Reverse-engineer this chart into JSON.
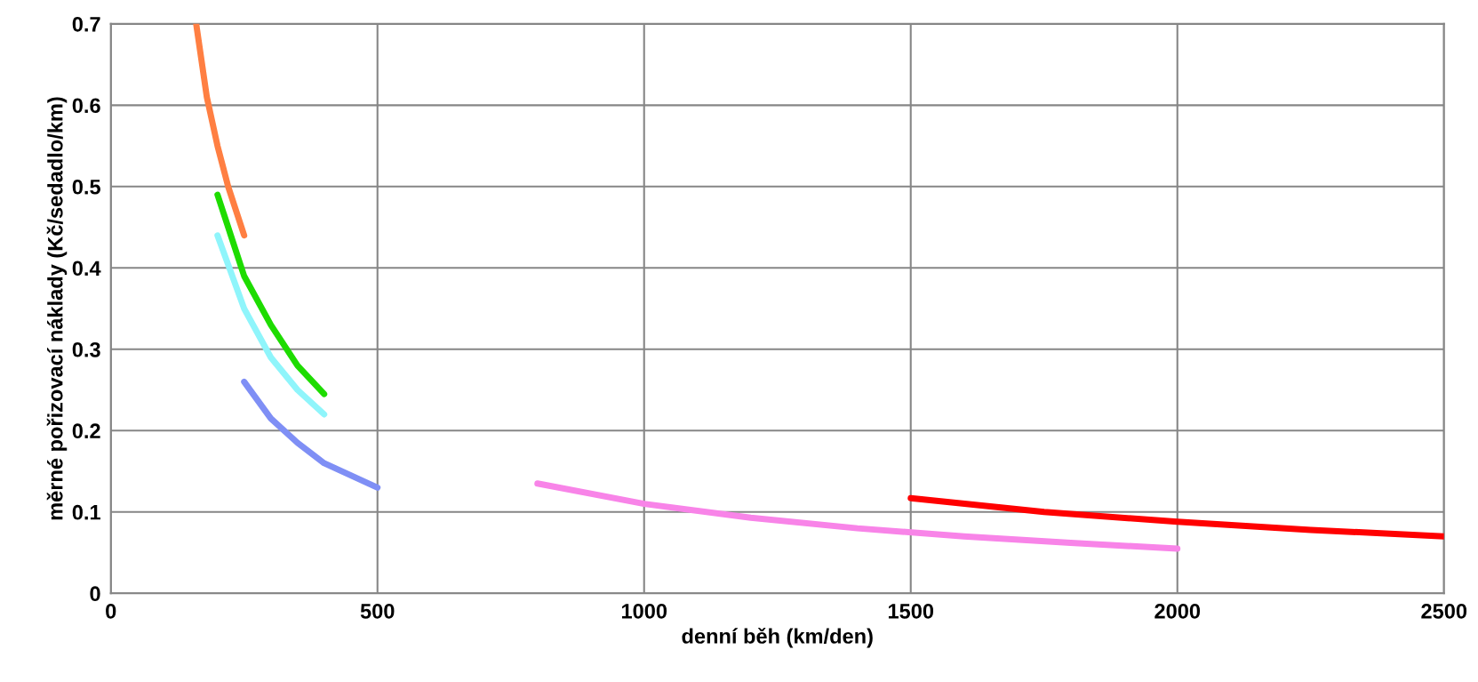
{
  "chart_data": {
    "type": "line",
    "xlabel": "denní běh (km/den)",
    "ylabel": "měrné pořizovací náklady (Kč/sedadlo/km)",
    "xlim": [
      0,
      2500
    ],
    "xticks": [
      0,
      500,
      1000,
      1500,
      2000,
      2500
    ],
    "ylim": [
      0,
      0.7
    ],
    "yticks": [
      0,
      0.1,
      0.2,
      0.3,
      0.4,
      0.5,
      0.6,
      0.7
    ],
    "grid": true,
    "marker": "none",
    "line_style": "solid",
    "series": [
      {
        "color": "#ff7f42",
        "x": [
          160,
          180,
          200,
          220,
          250
        ],
        "values": [
          0.7,
          0.61,
          0.55,
          0.5,
          0.44
        ]
      },
      {
        "color": "#1edc00",
        "x": [
          200,
          250,
          300,
          350,
          400
        ],
        "values": [
          0.49,
          0.39,
          0.33,
          0.28,
          0.245
        ]
      },
      {
        "color": "#8ff5fb",
        "x": [
          200,
          250,
          300,
          350,
          400
        ],
        "values": [
          0.44,
          0.35,
          0.29,
          0.25,
          0.22
        ]
      },
      {
        "color": "#7f8ff5",
        "x": [
          250,
          300,
          350,
          400,
          450,
          500
        ],
        "values": [
          0.26,
          0.215,
          0.185,
          0.16,
          0.145,
          0.13
        ]
      },
      {
        "color": "#f884e8",
        "x": [
          800,
          1000,
          1200,
          1400,
          1600,
          1800,
          2000
        ],
        "values": [
          0.135,
          0.11,
          0.093,
          0.08,
          0.07,
          0.062,
          0.055
        ]
      },
      {
        "color": "#ff0000",
        "x": [
          1500,
          1750,
          2000,
          2250,
          2500
        ],
        "values": [
          0.117,
          0.1,
          0.088,
          0.078,
          0.07
        ]
      }
    ]
  }
}
